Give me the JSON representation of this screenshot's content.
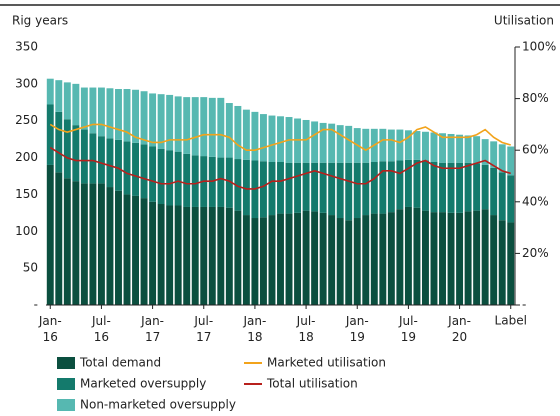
{
  "chart_data": {
    "type": "bar",
    "y_label": "Rig years",
    "y2_label": "Utilisation",
    "categories": [
      "Jan-16",
      null,
      null,
      null,
      null,
      null,
      "Jul-16",
      null,
      null,
      null,
      null,
      null,
      "Jan-17",
      null,
      null,
      null,
      null,
      null,
      "Jul-17",
      null,
      null,
      null,
      null,
      null,
      "Jan-18",
      null,
      null,
      null,
      null,
      null,
      "Jul-18",
      null,
      null,
      null,
      null,
      null,
      "Jan-19",
      null,
      null,
      null,
      null,
      null,
      "Jul-19",
      null,
      null,
      null,
      null,
      null,
      "Jan-20",
      null,
      null,
      null,
      null,
      null,
      "Label"
    ],
    "ylim": [
      0,
      350
    ],
    "yticks": [
      {
        "value": 0,
        "label": "-"
      },
      50,
      100,
      150,
      200,
      250,
      300,
      350
    ],
    "y2lim": [
      0,
      100
    ],
    "y2ticks": [
      {
        "value": 0,
        "label": "-"
      },
      {
        "value": 20,
        "label": "20%"
      },
      {
        "value": 40,
        "label": "40%"
      },
      {
        "value": 60,
        "label": "60%"
      },
      {
        "value": 80,
        "label": "80%"
      },
      {
        "value": 100,
        "label": "100%"
      }
    ],
    "stacked": true,
    "series": [
      {
        "name": "Total demand",
        "type": "bar",
        "color": "#0b4f3f",
        "values": [
          190,
          180,
          172,
          168,
          165,
          165,
          165,
          160,
          155,
          150,
          148,
          145,
          140,
          137,
          135,
          135,
          133,
          133,
          133,
          133,
          133,
          132,
          128,
          122,
          118,
          119,
          122,
          124,
          124,
          125,
          128,
          127,
          125,
          122,
          118,
          115,
          118,
          122,
          124,
          124,
          126,
          130,
          133,
          132,
          128,
          126,
          126,
          125,
          125,
          127,
          128,
          130,
          122,
          115,
          112
        ]
      },
      {
        "name": "Marketed oversupply",
        "type": "bar",
        "color": "#147a6c",
        "values": [
          82,
          82,
          80,
          76,
          73,
          68,
          64,
          66,
          69,
          72,
          72,
          73,
          75,
          75,
          75,
          73,
          72,
          70,
          69,
          68,
          67,
          68,
          70,
          75,
          78,
          76,
          72,
          70,
          69,
          68,
          65,
          66,
          68,
          71,
          75,
          78,
          75,
          71,
          70,
          71,
          69,
          66,
          64,
          65,
          68,
          68,
          67,
          68,
          68,
          66,
          64,
          60,
          64,
          65,
          64
        ]
      },
      {
        "name": "Non-marketed oversupply",
        "type": "bar",
        "color": "#56b8b1",
        "values": [
          35,
          43,
          50,
          56,
          57,
          62,
          66,
          68,
          69,
          71,
          72,
          72,
          72,
          74,
          75,
          75,
          77,
          79,
          80,
          80,
          81,
          74,
          72,
          68,
          66,
          64,
          63,
          62,
          62,
          60,
          58,
          56,
          54,
          53,
          51,
          50,
          47,
          46,
          45,
          44,
          43,
          42,
          40,
          39,
          39,
          40,
          40,
          39,
          38,
          37,
          37,
          35,
          36,
          38,
          39
        ]
      },
      {
        "name": "Marketed utilisation",
        "type": "line",
        "axis": "y2",
        "color": "#f2a31b",
        "values": [
          70,
          68,
          67,
          68,
          69,
          70,
          70,
          69,
          68,
          67,
          65,
          64,
          63,
          63,
          64,
          64,
          64,
          65,
          66,
          66,
          66,
          65,
          62,
          60,
          60,
          61,
          62,
          63,
          64,
          64,
          64,
          66,
          68,
          68,
          66,
          64,
          62,
          60,
          62,
          64,
          64,
          63,
          65,
          68,
          69,
          67,
          65,
          65,
          65,
          65,
          66,
          68,
          65,
          63,
          62
        ]
      },
      {
        "name": "Total utilisation",
        "type": "line",
        "axis": "y2",
        "color": "#b8201c",
        "values": [
          61,
          59,
          57,
          56,
          56,
          56,
          55,
          54,
          53,
          51,
          50,
          49,
          48,
          47,
          47,
          48,
          47,
          47,
          48,
          48,
          49,
          48,
          46,
          45,
          45,
          46,
          48,
          48,
          49,
          50,
          51,
          52,
          51,
          50,
          49,
          48,
          47,
          47,
          49,
          52,
          52,
          51,
          53,
          55,
          56,
          54,
          53,
          53,
          53,
          54,
          55,
          56,
          54,
          52,
          51
        ]
      }
    ]
  }
}
